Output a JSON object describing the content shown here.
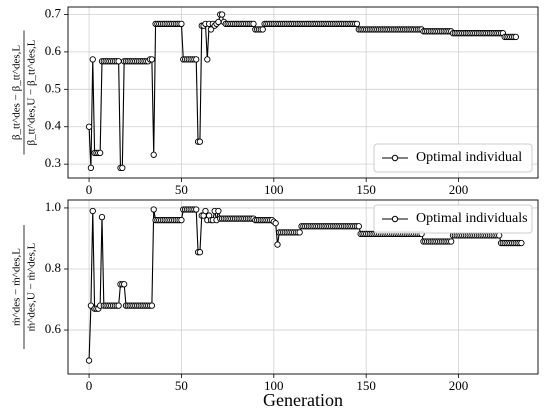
{
  "chart_data": [
    {
      "type": "line",
      "ylabel": {
        "numerator": "β_tt^des − β_tt^des,L",
        "denominator": "β_tt^des,U − β_tt^des,L"
      },
      "xlim": [
        -11.4,
        243
      ],
      "xticks": [
        0,
        50,
        100,
        150,
        200
      ],
      "ylim": [
        0.263,
        0.72
      ],
      "yticks": [
        0.3,
        0.4,
        0.5,
        0.6,
        0.7
      ],
      "grid": true,
      "legend": "lower right",
      "series": [
        {
          "name": "Optimal individual",
          "color": "#000000",
          "x": [
            0,
            1,
            2,
            3,
            4,
            5,
            6,
            7,
            8,
            9,
            10,
            11,
            12,
            13,
            14,
            15,
            16,
            17,
            18,
            19,
            20,
            21,
            22,
            23,
            24,
            25,
            26,
            27,
            28,
            29,
            30,
            31,
            32,
            33,
            34,
            35,
            36,
            37,
            38,
            39,
            40,
            41,
            42,
            43,
            44,
            45,
            46,
            47,
            48,
            49,
            50,
            51,
            52,
            53,
            54,
            55,
            56,
            57,
            58,
            59,
            60,
            61,
            62,
            63,
            64,
            65,
            66,
            67,
            68,
            69,
            70,
            71,
            72,
            73,
            74,
            75,
            76,
            77,
            78,
            79,
            80,
            81,
            82,
            83,
            84,
            85,
            86,
            87,
            88,
            89,
            90,
            91,
            92,
            93,
            94,
            95,
            96,
            97,
            98,
            99,
            100,
            101,
            102,
            103,
            104,
            105,
            106,
            107,
            108,
            109,
            110,
            111,
            112,
            113,
            114,
            115,
            116,
            117,
            118,
            119,
            120,
            121,
            122,
            123,
            124,
            125,
            126,
            127,
            128,
            129,
            130,
            131,
            132,
            133,
            134,
            135,
            136,
            137,
            138,
            139,
            140,
            141,
            142,
            143,
            144,
            145,
            146,
            147,
            148,
            149,
            150,
            151,
            152,
            153,
            154,
            155,
            156,
            157,
            158,
            159,
            160,
            161,
            162,
            163,
            164,
            165,
            166,
            167,
            168,
            169,
            170,
            171,
            172,
            173,
            174,
            175,
            176,
            177,
            178,
            179,
            180,
            181,
            182,
            183,
            184,
            185,
            186,
            187,
            188,
            189,
            190,
            191,
            192,
            193,
            194,
            195,
            196,
            197,
            198,
            199,
            200,
            201,
            202,
            203,
            204,
            205,
            206,
            207,
            208,
            209,
            210,
            211,
            212,
            213,
            214,
            215,
            216,
            217,
            218,
            219,
            220,
            221,
            222,
            223,
            224,
            225,
            226,
            227,
            228,
            229,
            230,
            231
          ],
          "values": [
            0.4,
            0.29,
            0.58,
            0.33,
            0.33,
            0.33,
            0.33,
            0.575,
            0.575,
            0.575,
            0.575,
            0.575,
            0.575,
            0.575,
            0.575,
            0.575,
            0.575,
            0.29,
            0.29,
            0.575,
            0.575,
            0.575,
            0.575,
            0.575,
            0.575,
            0.575,
            0.575,
            0.575,
            0.575,
            0.575,
            0.575,
            0.575,
            0.575,
            0.58,
            0.58,
            0.325,
            0.675,
            0.675,
            0.675,
            0.675,
            0.675,
            0.675,
            0.675,
            0.675,
            0.675,
            0.675,
            0.675,
            0.675,
            0.675,
            0.675,
            0.675,
            0.58,
            0.58,
            0.58,
            0.58,
            0.58,
            0.58,
            0.58,
            0.58,
            0.36,
            0.36,
            0.67,
            0.67,
            0.675,
            0.58,
            0.675,
            0.66,
            0.675,
            0.67,
            0.675,
            0.68,
            0.7,
            0.7,
            0.68,
            0.675,
            0.675,
            0.675,
            0.675,
            0.675,
            0.675,
            0.675,
            0.675,
            0.675,
            0.675,
            0.675,
            0.675,
            0.675,
            0.675,
            0.675,
            0.675,
            0.66,
            0.66,
            0.66,
            0.66,
            0.66,
            0.675,
            0.675,
            0.675,
            0.675,
            0.675,
            0.675,
            0.675,
            0.675,
            0.675,
            0.675,
            0.675,
            0.675,
            0.675,
            0.675,
            0.675,
            0.675,
            0.675,
            0.675,
            0.675,
            0.675,
            0.675,
            0.675,
            0.675,
            0.675,
            0.675,
            0.675,
            0.675,
            0.675,
            0.675,
            0.675,
            0.675,
            0.675,
            0.675,
            0.675,
            0.675,
            0.675,
            0.675,
            0.675,
            0.675,
            0.675,
            0.675,
            0.675,
            0.675,
            0.675,
            0.675,
            0.675,
            0.675,
            0.675,
            0.675,
            0.675,
            0.675,
            0.66,
            0.66,
            0.66,
            0.66,
            0.66,
            0.66,
            0.66,
            0.66,
            0.66,
            0.66,
            0.66,
            0.66,
            0.66,
            0.66,
            0.66,
            0.66,
            0.66,
            0.66,
            0.66,
            0.66,
            0.66,
            0.66,
            0.66,
            0.66,
            0.66,
            0.66,
            0.66,
            0.66,
            0.66,
            0.66,
            0.66,
            0.66,
            0.66,
            0.66,
            0.66,
            0.655,
            0.655,
            0.655,
            0.655,
            0.655,
            0.655,
            0.655,
            0.655,
            0.655,
            0.655,
            0.655,
            0.655,
            0.655,
            0.655,
            0.655,
            0.655,
            0.65,
            0.65,
            0.65,
            0.65,
            0.65,
            0.65,
            0.65,
            0.65,
            0.65,
            0.65,
            0.65,
            0.65,
            0.65,
            0.65,
            0.65,
            0.65,
            0.65,
            0.65,
            0.65,
            0.65,
            0.65,
            0.65,
            0.65,
            0.65,
            0.65,
            0.65,
            0.65,
            0.65,
            0.64,
            0.64,
            0.64,
            0.64,
            0.64,
            0.64,
            0.64
          ]
        }
      ]
    },
    {
      "type": "line",
      "ylabel": {
        "numerator": "ṁ^des − ṁ^des,L",
        "denominator": "ṁ^des,U − ṁ^des,L"
      },
      "xlabel": "Generation",
      "xlim": [
        -11.4,
        243
      ],
      "xticks": [
        0,
        50,
        100,
        150,
        200
      ],
      "ylim": [
        0.456,
        1.026
      ],
      "yticks": [
        0.6,
        0.8,
        {
          "value": 1,
          "label": "1.0"
        }
      ],
      "grid": true,
      "legend": "upper right",
      "series": [
        {
          "name": "Optimal individuals",
          "color": "#000000",
          "x": [
            0,
            1,
            2,
            3,
            4,
            5,
            6,
            7,
            8,
            9,
            10,
            11,
            12,
            13,
            14,
            15,
            16,
            17,
            18,
            19,
            20,
            21,
            22,
            23,
            24,
            25,
            26,
            27,
            28,
            29,
            30,
            31,
            32,
            33,
            34,
            35,
            36,
            37,
            38,
            39,
            40,
            41,
            42,
            43,
            44,
            45,
            46,
            47,
            48,
            49,
            50,
            51,
            52,
            53,
            54,
            55,
            56,
            57,
            58,
            59,
            60,
            61,
            62,
            63,
            64,
            65,
            66,
            67,
            68,
            69,
            70,
            71,
            72,
            73,
            74,
            75,
            76,
            77,
            78,
            79,
            80,
            81,
            82,
            83,
            84,
            85,
            86,
            87,
            88,
            89,
            90,
            91,
            92,
            93,
            94,
            95,
            96,
            97,
            98,
            99,
            100,
            101,
            102,
            103,
            104,
            105,
            106,
            107,
            108,
            109,
            110,
            111,
            112,
            113,
            114,
            115,
            116,
            117,
            118,
            119,
            120,
            121,
            122,
            123,
            124,
            125,
            126,
            127,
            128,
            129,
            130,
            131,
            132,
            133,
            134,
            135,
            136,
            137,
            138,
            139,
            140,
            141,
            142,
            143,
            144,
            145,
            146,
            147,
            148,
            149,
            150,
            151,
            152,
            153,
            154,
            155,
            156,
            157,
            158,
            159,
            160,
            161,
            162,
            163,
            164,
            165,
            166,
            167,
            168,
            169,
            170,
            171,
            172,
            173,
            174,
            175,
            176,
            177,
            178,
            179,
            180,
            181,
            182,
            183,
            184,
            185,
            186,
            187,
            188,
            189,
            190,
            191,
            192,
            193,
            194,
            195,
            196,
            197,
            198,
            199,
            200,
            201,
            202,
            203,
            204,
            205,
            206,
            207,
            208,
            209,
            210,
            211,
            212,
            213,
            214,
            215,
            216,
            217,
            218,
            219,
            220,
            221,
            222,
            223,
            224,
            225,
            226,
            227,
            228,
            229,
            230,
            231,
            232,
            233,
            234
          ],
          "values": [
            0.5,
            0.68,
            0.99,
            0.67,
            0.67,
            0.67,
            0.68,
            0.97,
            0.68,
            0.68,
            0.68,
            0.68,
            0.68,
            0.68,
            0.68,
            0.68,
            0.68,
            0.75,
            0.75,
            0.75,
            0.68,
            0.68,
            0.68,
            0.68,
            0.68,
            0.68,
            0.68,
            0.68,
            0.68,
            0.68,
            0.68,
            0.68,
            0.68,
            0.68,
            0.68,
            0.995,
            0.96,
            0.96,
            0.96,
            0.96,
            0.96,
            0.96,
            0.96,
            0.96,
            0.96,
            0.96,
            0.96,
            0.96,
            0.96,
            0.96,
            0.96,
            0.995,
            0.995,
            0.995,
            0.995,
            0.995,
            0.995,
            0.995,
            0.995,
            0.855,
            0.855,
            0.975,
            0.975,
            0.99,
            0.96,
            0.975,
            0.96,
            0.96,
            0.99,
            0.96,
            0.99,
            0.965,
            0.965,
            0.965,
            0.965,
            0.965,
            0.965,
            0.965,
            0.965,
            0.965,
            0.965,
            0.965,
            0.965,
            0.965,
            0.965,
            0.965,
            0.965,
            0.965,
            0.965,
            0.965,
            0.96,
            0.96,
            0.96,
            0.96,
            0.96,
            0.96,
            0.96,
            0.96,
            0.96,
            0.96,
            0.955,
            0.95,
            0.88,
            0.92,
            0.92,
            0.92,
            0.92,
            0.92,
            0.92,
            0.92,
            0.92,
            0.92,
            0.92,
            0.92,
            0.92,
            0.94,
            0.94,
            0.94,
            0.94,
            0.94,
            0.94,
            0.94,
            0.94,
            0.94,
            0.94,
            0.94,
            0.94,
            0.94,
            0.94,
            0.94,
            0.94,
            0.94,
            0.94,
            0.94,
            0.94,
            0.94,
            0.94,
            0.94,
            0.94,
            0.94,
            0.94,
            0.94,
            0.94,
            0.94,
            0.94,
            0.94,
            0.94,
            0.915,
            0.915,
            0.915,
            0.915,
            0.915,
            0.915,
            0.915,
            0.915,
            0.915,
            0.915,
            0.915,
            0.915,
            0.915,
            0.915,
            0.915,
            0.915,
            0.915,
            0.915,
            0.915,
            0.915,
            0.915,
            0.915,
            0.915,
            0.915,
            0.915,
            0.915,
            0.915,
            0.915,
            0.915,
            0.915,
            0.915,
            0.915,
            0.915,
            0.915,
            0.89,
            0.89,
            0.89,
            0.89,
            0.89,
            0.89,
            0.89,
            0.89,
            0.89,
            0.89,
            0.89,
            0.89,
            0.89,
            0.89,
            0.89,
            0.89,
            0.91,
            0.91,
            0.91,
            0.91,
            0.91,
            0.91,
            0.91,
            0.91,
            0.91,
            0.91,
            0.91,
            0.91,
            0.91,
            0.91,
            0.91,
            0.91,
            0.91,
            0.91,
            0.91,
            0.91,
            0.91,
            0.91,
            0.91,
            0.91,
            0.91,
            0.91,
            0.885,
            0.885,
            0.885,
            0.885,
            0.885,
            0.885,
            0.885,
            0.885,
            0.885,
            0.885,
            0.885,
            0.885
          ]
        }
      ]
    }
  ]
}
